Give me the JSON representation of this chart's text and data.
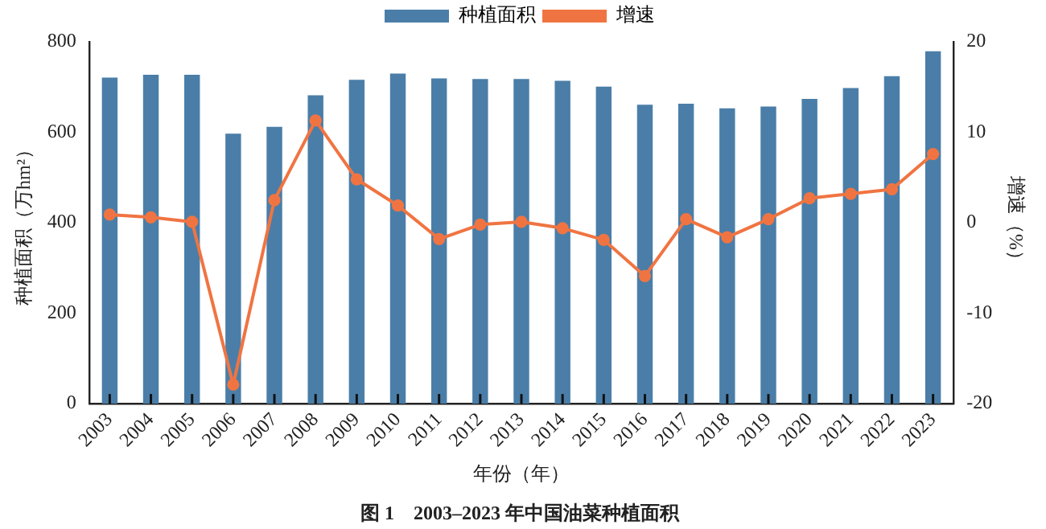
{
  "chart_data": {
    "type": "bar",
    "title": "图 1　2003–2023 年中国油菜种植面积",
    "xlabel": "年份（年）",
    "ylabel": "种植面积（万hm²）",
    "y2label": "增速（%）",
    "categories": [
      "2003",
      "2004",
      "2005",
      "2006",
      "2007",
      "2008",
      "2009",
      "2010",
      "2011",
      "2012",
      "2013",
      "2014",
      "2015",
      "2016",
      "2017",
      "2018",
      "2019",
      "2020",
      "2021",
      "2022",
      "2023"
    ],
    "series": [
      {
        "name": "种植面积",
        "color": "#4a7ea8",
        "values": [
          721,
          727,
          727,
          597,
          612,
          682,
          716,
          730,
          719,
          718,
          718,
          714,
          701,
          661,
          663,
          653,
          657,
          674,
          698,
          724,
          779
        ]
      },
      {
        "name": "增速",
        "type": "line",
        "axis": "y2",
        "color": "#f07442",
        "values": [
          0.9,
          0.6,
          0.1,
          -17.9,
          2.5,
          11.3,
          4.8,
          1.9,
          -1.8,
          -0.2,
          0.1,
          -0.6,
          -1.9,
          -5.9,
          0.4,
          -1.6,
          0.4,
          2.7,
          3.2,
          3.7,
          7.6
        ]
      }
    ],
    "ylim": [
      0,
      800
    ],
    "yticks": [
      0,
      200,
      400,
      600,
      800
    ],
    "y2lim": [
      -20,
      20
    ],
    "y2ticks": [
      -20,
      -10,
      0,
      10,
      20
    ],
    "grid": false,
    "legend": "top",
    "marker": "circle"
  }
}
